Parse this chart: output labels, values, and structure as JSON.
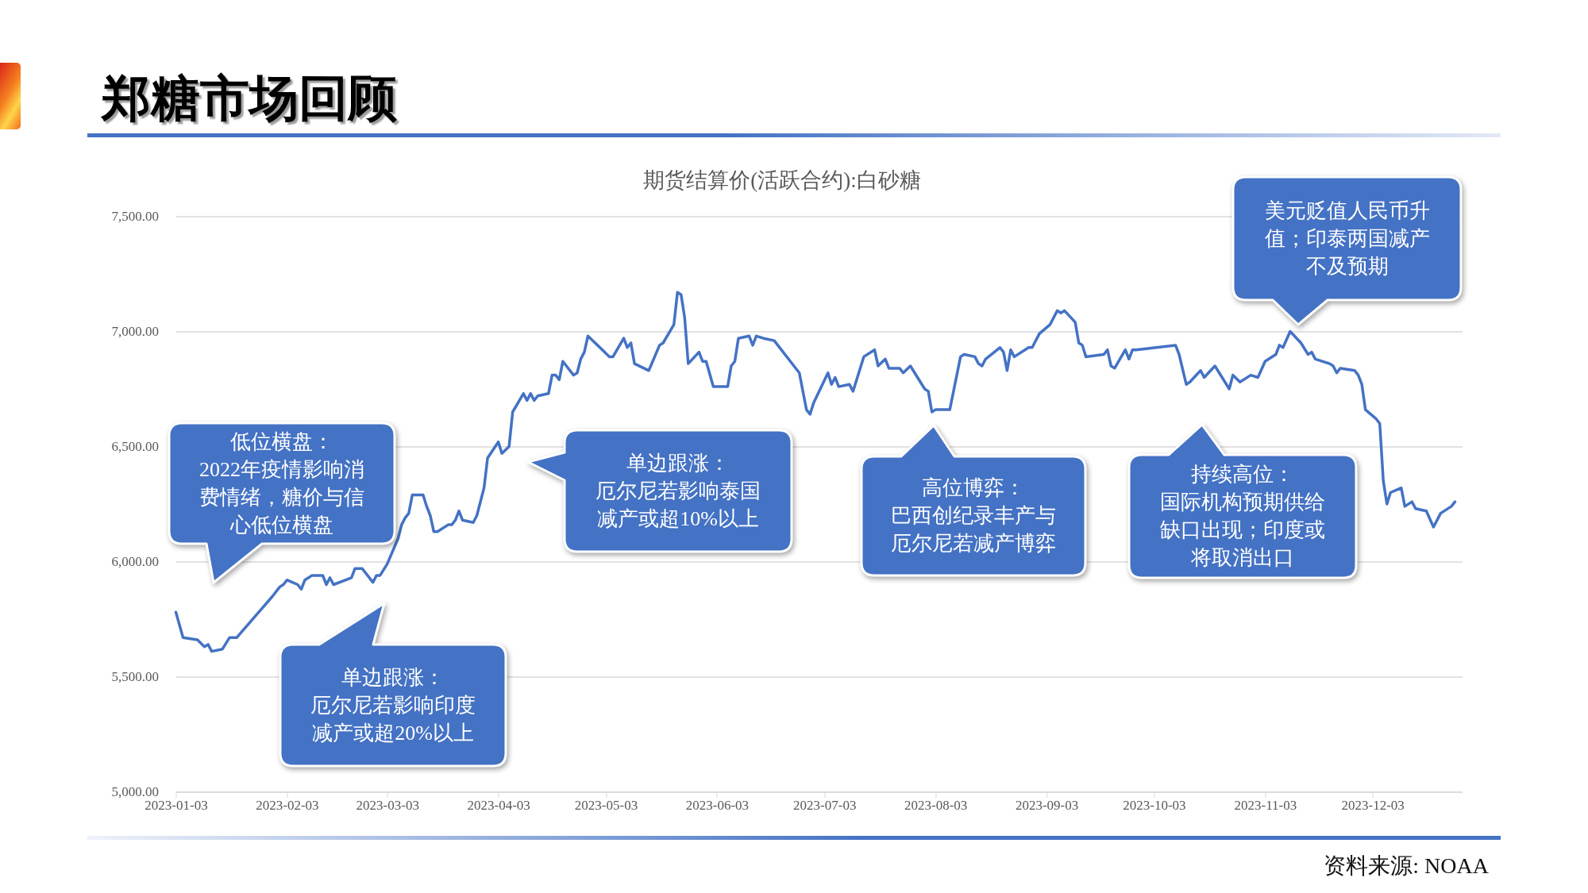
{
  "chart_data": {
    "type": "line",
    "title": "郑糖市场回顾",
    "subtitle": "期货结算价(活跃合约):白砂糖",
    "annotations": [
      "低位横盘：2022年疫情影响消费情绪，糖价与信心低位横盘",
      "单边跟涨：厄尔尼若影响印度减产或超20%以上",
      "单边跟涨：厄尔尼若影响泰国减产或超10%以上",
      "高位博弈：巴西创纪录丰产与厄尔尼若减产博弈",
      "持续高位：国际机构预期供给缺口出现；印度或将取消出口",
      "美元贬值人民币升值；印泰两国减产不及预期",
      "资料来源: NOAA"
    ],
    "x": [
      "2023-01-03",
      "2023-01-05",
      "2023-01-09",
      "2023-01-11",
      "2023-01-12",
      "2023-01-13",
      "2023-01-16",
      "2023-01-18",
      "2023-01-20",
      "2023-01-30",
      "2023-02-01",
      "2023-02-02",
      "2023-02-03",
      "2023-02-06",
      "2023-02-07",
      "2023-02-08",
      "2023-02-10",
      "2023-02-13",
      "2023-02-14",
      "2023-02-15",
      "2023-02-16",
      "2023-02-21",
      "2023-02-22",
      "2023-02-24",
      "2023-02-27",
      "2023-02-28",
      "2023-03-01",
      "2023-03-03",
      "2023-03-06",
      "2023-03-07",
      "2023-03-08",
      "2023-03-09",
      "2023-03-10",
      "2023-03-13",
      "2023-03-14",
      "2023-03-15",
      "2023-03-16",
      "2023-03-17",
      "2023-03-20",
      "2023-03-21",
      "2023-03-22",
      "2023-03-23",
      "2023-03-24",
      "2023-03-27",
      "2023-03-28",
      "2023-03-30",
      "2023-03-31",
      "2023-04-03",
      "2023-04-04",
      "2023-04-06",
      "2023-04-07",
      "2023-04-10",
      "2023-04-11",
      "2023-04-12",
      "2023-04-13",
      "2023-04-14",
      "2023-04-17",
      "2023-04-18",
      "2023-04-19",
      "2023-04-20",
      "2023-04-21",
      "2023-04-24",
      "2023-04-25",
      "2023-04-26",
      "2023-04-27",
      "2023-04-28",
      "2023-05-04",
      "2023-05-05",
      "2023-05-08",
      "2023-05-09",
      "2023-05-10",
      "2023-05-11",
      "2023-05-15",
      "2023-05-18",
      "2023-05-19",
      "2023-05-22",
      "2023-05-23",
      "2023-05-24",
      "2023-05-25",
      "2023-05-26",
      "2023-05-29",
      "2023-05-30",
      "2023-05-31",
      "2023-06-02",
      "2023-06-06",
      "2023-06-07",
      "2023-06-08",
      "2023-06-09",
      "2023-06-12",
      "2023-06-13",
      "2023-06-14",
      "2023-06-16",
      "2023-06-19",
      "2023-06-26",
      "2023-06-28",
      "2023-06-29",
      "2023-06-30",
      "2023-07-04",
      "2023-07-05",
      "2023-07-06",
      "2023-07-07",
      "2023-07-10",
      "2023-07-11",
      "2023-07-14",
      "2023-07-17",
      "2023-07-18",
      "2023-07-20",
      "2023-07-21",
      "2023-07-24",
      "2023-07-25",
      "2023-07-27",
      "2023-07-31",
      "2023-08-01",
      "2023-08-02",
      "2023-08-03",
      "2023-08-07",
      "2023-08-10",
      "2023-08-11",
      "2023-08-14",
      "2023-08-15",
      "2023-08-16",
      "2023-08-17",
      "2023-08-21",
      "2023-08-22",
      "2023-08-23",
      "2023-08-24",
      "2023-08-25",
      "2023-08-28",
      "2023-08-29",
      "2023-08-30",
      "2023-09-01",
      "2023-09-04",
      "2023-09-06",
      "2023-09-07",
      "2023-09-08",
      "2023-09-11",
      "2023-09-12",
      "2023-09-13",
      "2023-09-14",
      "2023-09-19",
      "2023-09-20",
      "2023-09-21",
      "2023-09-22",
      "2023-09-25",
      "2023-09-26",
      "2023-09-27",
      "2023-09-28",
      "2023-10-09",
      "2023-10-10",
      "2023-10-12",
      "2023-10-13",
      "2023-10-16",
      "2023-10-17",
      "2023-10-20",
      "2023-10-24",
      "2023-10-25",
      "2023-10-27",
      "2023-10-30",
      "2023-11-01",
      "2023-11-03",
      "2023-11-06",
      "2023-11-07",
      "2023-11-08",
      "2023-11-10",
      "2023-11-13",
      "2023-11-15",
      "2023-11-16",
      "2023-11-17",
      "2023-11-21",
      "2023-11-22",
      "2023-11-23",
      "2023-11-24",
      "2023-11-28",
      "2023-11-29",
      "2023-11-30",
      "2023-12-01",
      "2023-12-04",
      "2023-12-05",
      "2023-12-06",
      "2023-12-07",
      "2023-12-08",
      "2023-12-11",
      "2023-12-12",
      "2023-12-14",
      "2023-12-15",
      "2023-12-18",
      "2023-12-20",
      "2023-12-22",
      "2023-12-25",
      "2023-12-26"
    ],
    "values": [
      5780,
      5670,
      5660,
      5630,
      5640,
      5610,
      5620,
      5670,
      5670,
      5850,
      5890,
      5900,
      5920,
      5900,
      5880,
      5920,
      5940,
      5940,
      5900,
      5930,
      5900,
      5930,
      5970,
      5970,
      5910,
      5940,
      5940,
      5990,
      6100,
      6160,
      6190,
      6210,
      6290,
      6290,
      6240,
      6200,
      6130,
      6130,
      6160,
      6160,
      6180,
      6220,
      6180,
      6170,
      6200,
      6320,
      6450,
      6520,
      6470,
      6500,
      6650,
      6730,
      6700,
      6730,
      6700,
      6720,
      6730,
      6810,
      6810,
      6790,
      6870,
      6810,
      6820,
      6880,
      6910,
      6980,
      6890,
      6890,
      6970,
      6930,
      6950,
      6860,
      6830,
      6940,
      6950,
      7030,
      7170,
      7160,
      7060,
      6860,
      6910,
      6870,
      6870,
      6760,
      6760,
      6850,
      6870,
      6970,
      6980,
      6940,
      6980,
      6970,
      6960,
      6820,
      6660,
      6640,
      6690,
      6820,
      6770,
      6800,
      6760,
      6770,
      6740,
      6890,
      6920,
      6850,
      6880,
      6840,
      6840,
      6820,
      6850,
      6750,
      6740,
      6650,
      6660,
      6660,
      6890,
      6900,
      6890,
      6860,
      6850,
      6880,
      6930,
      6910,
      6830,
      6920,
      6890,
      6920,
      6930,
      6930,
      6990,
      7030,
      7090,
      7080,
      7090,
      7040,
      6950,
      6940,
      6890,
      6900,
      6920,
      6850,
      6840,
      6920,
      6880,
      6920,
      6920,
      6940,
      6900,
      6770,
      6780,
      6830,
      6800,
      6850,
      6750,
      6810,
      6780,
      6810,
      6800,
      6870,
      6900,
      6940,
      6930,
      7000,
      6950,
      6900,
      6910,
      6880,
      6860,
      6850,
      6820,
      6840,
      6830,
      6810,
      6770,
      6660,
      6620,
      6600,
      6350,
      6250,
      6300,
      6320,
      6240,
      6260,
      6230,
      6220,
      6150,
      6210,
      6240,
      6260
    ],
    "color": "#4472c4",
    "xlim": [
      "2023-01-03",
      "2023-12-28"
    ],
    "xticks": [
      "2023-01-03",
      "2023-02-03",
      "2023-03-03",
      "2023-04-03",
      "2023-05-03",
      "2023-06-03",
      "2023-07-03",
      "2023-08-03",
      "2023-09-03",
      "2023-10-03",
      "2023-11-03",
      "2023-12-03"
    ],
    "ylim": [
      5000,
      7500
    ],
    "yticks": [
      {
        "value": 5000,
        "label": "5,000.00"
      },
      {
        "value": 5500,
        "label": "5,500.00"
      },
      {
        "value": 6000,
        "label": "6,000.00"
      },
      {
        "value": 6500,
        "label": "6,500.00"
      },
      {
        "value": 7000,
        "label": "7,000.00"
      },
      {
        "value": 7500,
        "label": "7,500.00"
      }
    ],
    "grid": "y"
  }
}
